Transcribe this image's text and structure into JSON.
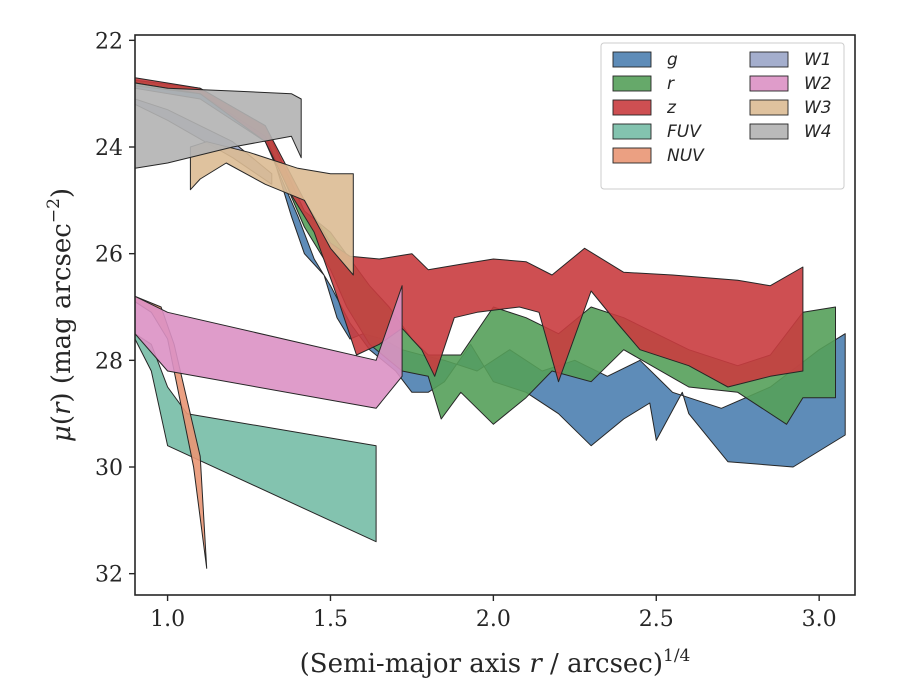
{
  "chart_data": {
    "type": "area",
    "xlabel": "(Semi-major axis r / arcsec)^{1/4}",
    "ylabel": "μ(r) (mag arcsec^{-2})",
    "xlim": [
      0.9,
      3.11
    ],
    "ylim": [
      32.4,
      21.9
    ],
    "y_inverted": true,
    "xticks": [
      "1.0",
      "1.5",
      "2.0",
      "2.5",
      "3.0"
    ],
    "yticks": [
      "22",
      "24",
      "26",
      "28",
      "30",
      "32"
    ],
    "grid": false,
    "legend": {
      "placement": "top-right",
      "columns": 2
    },
    "series": [
      {
        "name": "g",
        "color": "#4c7fb0",
        "upper": [
          [
            0.9,
            22.8
          ],
          [
            1.1,
            23.0
          ],
          [
            1.3,
            23.7
          ],
          [
            1.38,
            25.3
          ],
          [
            1.42,
            26.0
          ],
          [
            1.48,
            26.4
          ],
          [
            1.52,
            27.2
          ],
          [
            1.56,
            27.6
          ],
          [
            1.6,
            27.5
          ],
          [
            1.66,
            27.6
          ],
          [
            1.72,
            27.8
          ],
          [
            1.78,
            27.9
          ],
          [
            1.85,
            28.0
          ],
          [
            1.95,
            28.2
          ],
          [
            2.05,
            27.8
          ],
          [
            2.15,
            28.2
          ],
          [
            2.25,
            28.0
          ],
          [
            2.35,
            28.3
          ],
          [
            2.45,
            28.0
          ],
          [
            2.55,
            28.6
          ],
          [
            2.7,
            28.9
          ],
          [
            2.85,
            28.5
          ],
          [
            3.0,
            27.8
          ],
          [
            3.08,
            27.5
          ]
        ],
        "lower": [
          [
            3.08,
            29.4
          ],
          [
            2.92,
            30.0
          ],
          [
            2.72,
            29.9
          ],
          [
            2.6,
            29.0
          ],
          [
            2.58,
            28.6
          ],
          [
            2.5,
            29.5
          ],
          [
            2.48,
            28.8
          ],
          [
            2.4,
            29.1
          ],
          [
            2.3,
            29.6
          ],
          [
            2.2,
            29.0
          ],
          [
            2.1,
            28.6
          ],
          [
            2.0,
            28.4
          ],
          [
            1.93,
            27.7
          ],
          [
            1.85,
            28.4
          ],
          [
            1.8,
            28.6
          ],
          [
            1.75,
            28.6
          ],
          [
            1.7,
            28.2
          ],
          [
            1.62,
            27.8
          ],
          [
            1.56,
            27.3
          ],
          [
            1.5,
            26.6
          ],
          [
            1.45,
            26.1
          ],
          [
            1.4,
            25.3
          ],
          [
            1.3,
            23.9
          ],
          [
            1.1,
            23.1
          ],
          [
            0.9,
            22.9
          ]
        ]
      },
      {
        "name": "r",
        "color": "#55a05a",
        "upper": [
          [
            0.9,
            22.75
          ],
          [
            1.1,
            22.9
          ],
          [
            1.3,
            23.6
          ],
          [
            1.42,
            25.2
          ],
          [
            1.5,
            25.6
          ],
          [
            1.56,
            26.1
          ],
          [
            1.62,
            26.6
          ],
          [
            1.68,
            27.0
          ],
          [
            1.75,
            27.6
          ],
          [
            1.8,
            27.9
          ],
          [
            1.9,
            27.9
          ],
          [
            2.0,
            27.0
          ],
          [
            2.1,
            27.2
          ],
          [
            2.2,
            27.5
          ],
          [
            2.3,
            27.0
          ],
          [
            2.4,
            27.2
          ],
          [
            2.5,
            27.5
          ],
          [
            2.6,
            27.8
          ],
          [
            2.75,
            28.1
          ],
          [
            2.85,
            27.9
          ],
          [
            2.95,
            27.1
          ],
          [
            3.05,
            27.0
          ]
        ],
        "lower": [
          [
            3.05,
            28.7
          ],
          [
            2.95,
            28.7
          ],
          [
            2.9,
            29.2
          ],
          [
            2.75,
            28.6
          ],
          [
            2.6,
            28.5
          ],
          [
            2.4,
            27.8
          ],
          [
            2.3,
            28.4
          ],
          [
            2.18,
            28.2
          ],
          [
            2.1,
            28.7
          ],
          [
            2.0,
            29.2
          ],
          [
            1.9,
            28.6
          ],
          [
            1.84,
            29.1
          ],
          [
            1.8,
            28.3
          ],
          [
            1.72,
            28.2
          ],
          [
            1.62,
            27.7
          ],
          [
            1.55,
            27.0
          ],
          [
            1.5,
            26.3
          ],
          [
            1.42,
            25.5
          ],
          [
            1.3,
            23.8
          ],
          [
            1.1,
            23.0
          ],
          [
            0.9,
            22.85
          ]
        ]
      },
      {
        "name": "z",
        "color": "#c93c3f",
        "upper": [
          [
            0.9,
            22.7
          ],
          [
            1.1,
            22.9
          ],
          [
            1.3,
            23.6
          ],
          [
            1.42,
            25.0
          ],
          [
            1.5,
            25.8
          ],
          [
            1.56,
            26.05
          ],
          [
            1.65,
            26.1
          ],
          [
            1.75,
            26.0
          ],
          [
            1.8,
            26.3
          ],
          [
            1.9,
            26.2
          ],
          [
            2.0,
            26.1
          ],
          [
            2.1,
            26.15
          ],
          [
            2.18,
            26.4
          ],
          [
            2.28,
            25.9
          ],
          [
            2.4,
            26.35
          ],
          [
            2.55,
            26.4
          ],
          [
            2.75,
            26.5
          ],
          [
            2.85,
            26.6
          ],
          [
            2.95,
            26.25
          ]
        ],
        "lower": [
          [
            2.95,
            28.2
          ],
          [
            2.85,
            28.3
          ],
          [
            2.72,
            28.5
          ],
          [
            2.6,
            28.1
          ],
          [
            2.45,
            27.8
          ],
          [
            2.38,
            27.3
          ],
          [
            2.3,
            26.7
          ],
          [
            2.2,
            28.4
          ],
          [
            2.14,
            27.1
          ],
          [
            2.08,
            27.0
          ],
          [
            1.95,
            27.1
          ],
          [
            1.88,
            27.2
          ],
          [
            1.82,
            28.3
          ],
          [
            1.78,
            27.8
          ],
          [
            1.72,
            27.4
          ],
          [
            1.65,
            27.7
          ],
          [
            1.58,
            27.9
          ],
          [
            1.52,
            26.8
          ],
          [
            1.45,
            25.6
          ],
          [
            1.38,
            24.9
          ],
          [
            1.3,
            23.9
          ],
          [
            1.1,
            23.0
          ],
          [
            0.9,
            22.8
          ]
        ]
      },
      {
        "name": "FUV",
        "color": "#75bca6",
        "upper": [
          [
            0.9,
            27.5
          ],
          [
            0.95,
            27.7
          ],
          [
            1.0,
            28.5
          ],
          [
            1.06,
            29.0
          ],
          [
            1.64,
            29.6
          ]
        ],
        "lower": [
          [
            1.64,
            31.4
          ],
          [
            1.0,
            29.6
          ],
          [
            0.95,
            28.2
          ],
          [
            0.9,
            27.6
          ]
        ]
      },
      {
        "name": "NUV",
        "color": "#e99674",
        "upper": [
          [
            0.9,
            26.8
          ],
          [
            0.98,
            27.0
          ],
          [
            1.02,
            27.7
          ],
          [
            1.1,
            29.8
          ],
          [
            1.12,
            31.9
          ]
        ],
        "lower": [
          [
            1.12,
            31.9
          ],
          [
            1.08,
            30.0
          ],
          [
            1.0,
            27.6
          ],
          [
            0.95,
            27.1
          ],
          [
            0.9,
            26.9
          ]
        ]
      },
      {
        "name": "W1",
        "color": "#9aa5c8",
        "upper": [
          [
            0.9,
            23.1
          ],
          [
            1.0,
            23.3
          ],
          [
            1.2,
            23.9
          ],
          [
            1.32,
            24.5
          ]
        ],
        "lower": [
          [
            1.32,
            24.7
          ],
          [
            1.2,
            24.2
          ],
          [
            1.0,
            23.5
          ],
          [
            0.9,
            23.2
          ]
        ]
      },
      {
        "name": "W2",
        "color": "#db91c4",
        "upper": [
          [
            0.9,
            26.8
          ],
          [
            1.0,
            27.1
          ],
          [
            1.64,
            28.0
          ],
          [
            1.72,
            26.6
          ]
        ],
        "lower": [
          [
            1.72,
            28.3
          ],
          [
            1.64,
            28.9
          ],
          [
            1.0,
            28.2
          ],
          [
            0.9,
            27.5
          ]
        ]
      },
      {
        "name": "W3",
        "color": "#dbbb94",
        "upper": [
          [
            1.07,
            24.0
          ],
          [
            1.12,
            23.9
          ],
          [
            1.25,
            24.1
          ],
          [
            1.4,
            24.4
          ],
          [
            1.5,
            24.5
          ],
          [
            1.57,
            24.5
          ]
        ],
        "lower": [
          [
            1.57,
            26.4
          ],
          [
            1.5,
            25.9
          ],
          [
            1.42,
            25.0
          ],
          [
            1.3,
            24.7
          ],
          [
            1.18,
            24.3
          ],
          [
            1.1,
            24.6
          ],
          [
            1.07,
            24.8
          ]
        ]
      },
      {
        "name": "W4",
        "color": "#b3b3b3",
        "upper": [
          [
            0.9,
            22.8
          ],
          [
            1.0,
            22.9
          ],
          [
            1.2,
            22.95
          ],
          [
            1.38,
            23.0
          ],
          [
            1.41,
            23.1
          ]
        ],
        "lower": [
          [
            1.41,
            24.2
          ],
          [
            1.38,
            23.8
          ],
          [
            1.2,
            24.0
          ],
          [
            1.0,
            24.3
          ],
          [
            0.9,
            24.4
          ]
        ]
      }
    ]
  }
}
